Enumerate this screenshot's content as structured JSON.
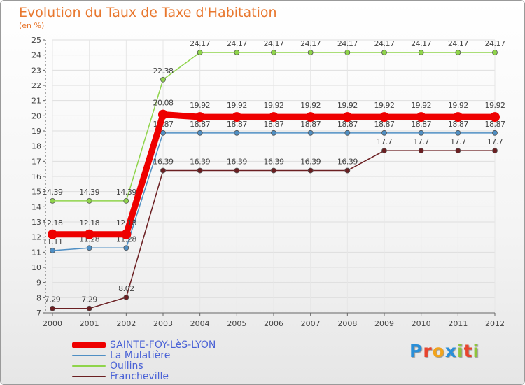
{
  "chart_data": {
    "type": "line",
    "title": "Evolution du Taux de Taxe d'Habitation",
    "subtitle": "(en %)",
    "x": [
      "2000",
      "2001",
      "2002",
      "2003",
      "2004",
      "2005",
      "2006",
      "2007",
      "2008",
      "2009",
      "2010",
      "2011",
      "2012"
    ],
    "ylim": [
      7,
      25
    ],
    "yticks": [
      7,
      8,
      9,
      10,
      11,
      12,
      13,
      14,
      15,
      16,
      17,
      18,
      19,
      20,
      21,
      22,
      23,
      24,
      25
    ],
    "grid": true,
    "legend_position": "bottom-left",
    "series": [
      {
        "name": "Oullins",
        "color": "#8fd44b",
        "values": [
          14.39,
          14.39,
          14.39,
          22.38,
          24.17,
          24.17,
          24.17,
          24.17,
          24.17,
          24.17,
          24.17,
          24.17,
          24.17
        ],
        "labels": [
          "14.39",
          "14.39",
          "14.39",
          "22.38",
          "24.17",
          "24.17",
          "24.17",
          "24.17",
          "24.17",
          "24.17",
          "24.17",
          "24.17",
          "24.17"
        ]
      },
      {
        "name": "La Mulatière",
        "color": "#4f8fc4",
        "values": [
          11.11,
          11.28,
          11.28,
          18.87,
          18.87,
          18.87,
          18.87,
          18.87,
          18.87,
          18.87,
          18.87,
          18.87,
          18.87
        ],
        "labels": [
          "11.11",
          "11.28",
          "11.28",
          "18.87",
          "18.87",
          "18.87",
          "18.87",
          "18.87",
          "18.87",
          "18.87",
          "18.87",
          "18.87",
          "18.87"
        ]
      },
      {
        "name": "Francheville",
        "color": "#6b1f22",
        "values": [
          7.29,
          7.29,
          8.02,
          16.39,
          16.39,
          16.39,
          16.39,
          16.39,
          16.39,
          17.7,
          17.7,
          17.7,
          17.7
        ],
        "labels": [
          "7.29",
          "7.29",
          "8.02",
          "16.39",
          "16.39",
          "16.39",
          "16.39",
          "16.39",
          "16.39",
          "17.7",
          "17.7",
          "17.7",
          "17.7"
        ]
      },
      {
        "name": "SAINTE-FOY-LèS-LYON",
        "color": "#ee0000",
        "values": [
          12.18,
          12.18,
          12.18,
          20.08,
          19.92,
          19.92,
          19.92,
          19.92,
          19.92,
          19.92,
          19.92,
          19.92,
          19.92
        ],
        "labels": [
          "12.18",
          "12.18",
          "12.18",
          "20.08",
          "19.92",
          "19.92",
          "19.92",
          "19.92",
          "19.92",
          "19.92",
          "19.92",
          "19.92",
          "19.92"
        ]
      }
    ],
    "legend": [
      {
        "name": "SAINTE-FOY-LèS-LYON",
        "color": "#ee0000",
        "weight": "thick"
      },
      {
        "name": "La Mulatière",
        "color": "#4f8fc4",
        "weight": "thin"
      },
      {
        "name": "Oullins",
        "color": "#8fd44b",
        "weight": "thin"
      },
      {
        "name": "Francheville",
        "color": "#6b1f22",
        "weight": "thin"
      }
    ]
  },
  "logo": {
    "text": "Proxiti",
    "letter_colors": [
      "#2a8fd8",
      "#e8442e",
      "#f2a41c",
      "#2a8fd8",
      "#8fc43b",
      "#e8442e",
      "#8fc43b"
    ]
  }
}
